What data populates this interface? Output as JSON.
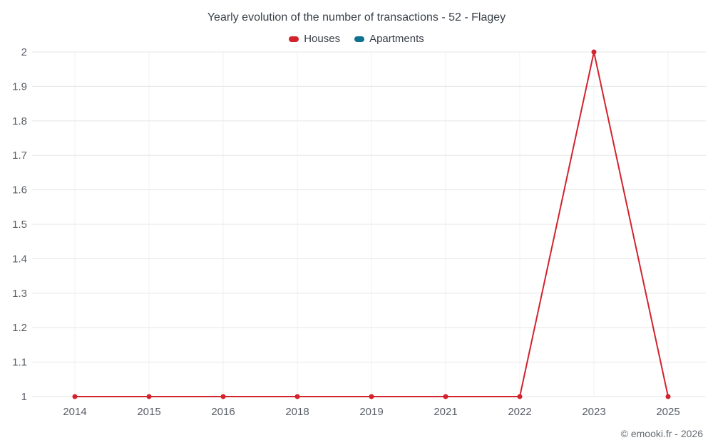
{
  "title": "Yearly evolution of the number of transactions - 52 - Flagey",
  "footer": {
    "credit": "© emooki.fr - 2026"
  },
  "colors": {
    "houses": "#d2232d",
    "apartments": "#10708f",
    "grid_h": "#e6e6e6",
    "grid_v": "#f2f2f2",
    "axis_text": "#5a5f66"
  },
  "chart_data": {
    "type": "line",
    "title": "Yearly evolution of the number of transactions - 52 - Flagey",
    "categories": [
      "2014",
      "2015",
      "2016",
      "2018",
      "2019",
      "2021",
      "2022",
      "2023",
      "2025"
    ],
    "series": [
      {
        "name": "Houses",
        "color": "#d2232d",
        "values": [
          1,
          1,
          1,
          1,
          1,
          1,
          1,
          2,
          1
        ]
      },
      {
        "name": "Apartments",
        "color": "#10708f",
        "values": []
      }
    ],
    "xlabel": "",
    "ylabel": "",
    "ylim": [
      1,
      2
    ],
    "y_ticks": [
      1,
      1.1,
      1.2,
      1.3,
      1.4,
      1.5,
      1.6,
      1.7,
      1.8,
      1.9,
      2
    ],
    "grid": true,
    "legend_position": "top",
    "marker_radius": 3.5
  }
}
